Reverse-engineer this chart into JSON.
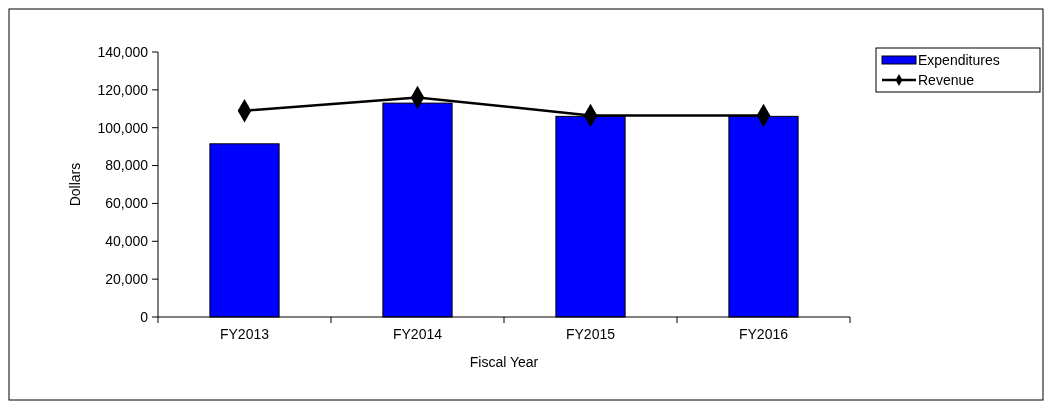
{
  "chart_data": {
    "type": "bar",
    "xlabel": "Fiscal Year",
    "ylabel": "Dollars",
    "categories": [
      "FY2013",
      "FY2014",
      "FY2015",
      "FY2016"
    ],
    "series": [
      {
        "name": "Expenditures",
        "color": "#0000ff",
        "values": [
          91500,
          113000,
          106000,
          106000
        ]
      },
      {
        "name": "Revenue",
        "type": "line",
        "color": "#000000",
        "values": [
          109000,
          116000,
          106500,
          106500
        ],
        "marker": "diamond"
      }
    ],
    "ylim": [
      0,
      140000
    ],
    "yticks": [
      {
        "value": 0,
        "label": "0"
      },
      {
        "value": 20000,
        "label": "20,000"
      },
      {
        "value": 40000,
        "label": "40,000"
      },
      {
        "value": 60000,
        "label": "60,000"
      },
      {
        "value": 80000,
        "label": "80,000"
      },
      {
        "value": 100000,
        "label": "100,000"
      },
      {
        "value": 120000,
        "label": "120,000"
      },
      {
        "value": 140000,
        "label": "140,000"
      }
    ],
    "grid": false,
    "legend": "top right"
  }
}
